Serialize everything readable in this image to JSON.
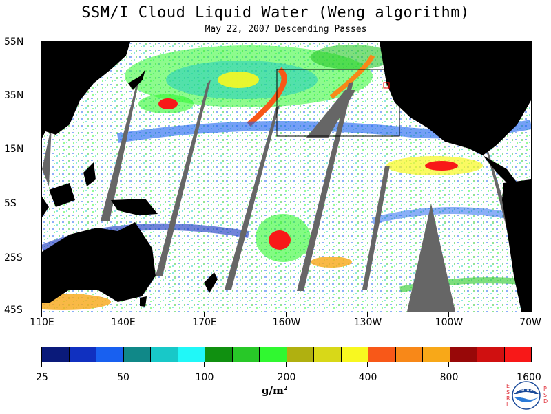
{
  "title": "SSM/I Cloud Liquid Water (Weng algorithm)",
  "subtitle": "May 22, 2007  Descending Passes",
  "lat_labels": [
    "55N",
    "35N",
    "15N",
    "5S",
    "25S",
    "45S"
  ],
  "lon_labels": [
    "110E",
    "140E",
    "170E",
    "160W",
    "130W",
    "100W",
    "70W"
  ],
  "colorbar": {
    "colors": [
      "#0a1a7a",
      "#1030c0",
      "#1860f0",
      "#108888",
      "#18c8c8",
      "#20f8f8",
      "#109010",
      "#28c828",
      "#30f830",
      "#b0b010",
      "#d8d818",
      "#f8f820",
      "#f85818",
      "#f88818",
      "#f8a818",
      "#980808",
      "#d01010",
      "#f81818"
    ],
    "tick_labels": [
      "25",
      "50",
      "100",
      "200",
      "400",
      "800",
      "1600"
    ],
    "units": "g/m"
  },
  "colors": {
    "land": "#000000",
    "no_data_swath": "#666666",
    "ocean_clear": "#ffffff",
    "box_outline": "#000000",
    "marker": "#ff0000"
  },
  "logo": {
    "left_letters": "ESRL",
    "right_letters": "PSD",
    "center": "NOAA"
  }
}
